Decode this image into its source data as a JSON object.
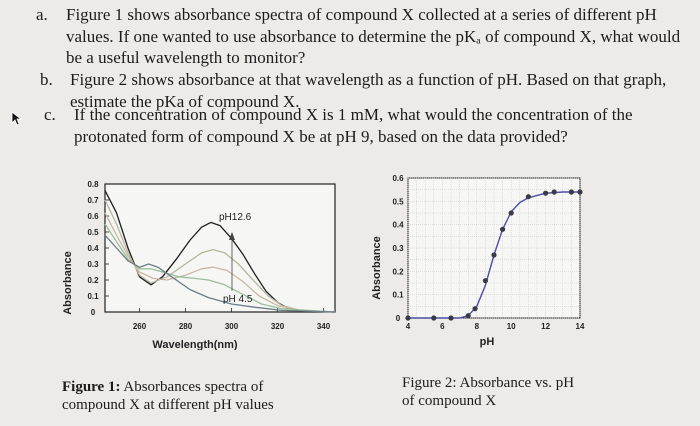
{
  "questions": [
    {
      "label": "a.",
      "lines": [
        "Figure 1 shows absorbance spectra of compound X collected at a series of different pH",
        "values. If one wanted to use absorbance to determine the pKₐ of compound X, what would",
        "be a useful wavelength to monitor?"
      ]
    },
    {
      "label": "b.",
      "lines": [
        "Figure 2 shows absorbance at that wavelength as a function of pH. Based on that graph,",
        "estimate the pKa of compound X."
      ]
    },
    {
      "label": "c.",
      "lines": [
        "If the concentration of compound X is 1 mM, what would the concentration of the",
        "protonated form of compound X be at pH 9, based on the data provided?"
      ]
    }
  ],
  "figure1": {
    "caption_bold": "Figure 1:",
    "caption_rest_line1": " Absorbances spectra of",
    "caption_line2": "compound X at different pH values"
  },
  "figure2": {
    "caption_line1": "Figure 2: Absorbance vs. pH",
    "caption_line2": "of compound X"
  },
  "chart_data": [
    {
      "type": "line",
      "xlabel": "Wavelength(nm)",
      "ylabel": "Absorbance",
      "xlim": [
        245,
        345
      ],
      "ylim": [
        0,
        0.8
      ],
      "x_ticks": [
        "260",
        "280",
        "300",
        "320",
        "340"
      ],
      "y_ticks": [
        "0.8",
        "0.7",
        "0.6",
        "0.5",
        "0.4",
        "0.3",
        "0.2",
        "0.1",
        "0"
      ],
      "annotations": [
        "pH12.6",
        "pH 4.5"
      ],
      "grid": false,
      "series": [
        {
          "color": "#1e1e1e",
          "points": [
            [
              245,
              0.76
            ],
            [
              250,
              0.62
            ],
            [
              255,
              0.4
            ],
            [
              260,
              0.22
            ],
            [
              265,
              0.17
            ],
            [
              270,
              0.22
            ],
            [
              276,
              0.33
            ],
            [
              282,
              0.45
            ],
            [
              287,
              0.53
            ],
            [
              291,
              0.56
            ],
            [
              295,
              0.54
            ],
            [
              300,
              0.46
            ],
            [
              305,
              0.36
            ],
            [
              310,
              0.24
            ],
            [
              315,
              0.13
            ],
            [
              320,
              0.06
            ],
            [
              325,
              0.02
            ],
            [
              330,
              0.01
            ],
            [
              345,
              0.0
            ]
          ]
        },
        {
          "color": "#b6b6a2",
          "points": [
            [
              245,
              0.7
            ],
            [
              250,
              0.55
            ],
            [
              255,
              0.37
            ],
            [
              260,
              0.23
            ],
            [
              265,
              0.18
            ],
            [
              272,
              0.22
            ],
            [
              280,
              0.3
            ],
            [
              287,
              0.37
            ],
            [
              292,
              0.39
            ],
            [
              297,
              0.37
            ],
            [
              303,
              0.3
            ],
            [
              310,
              0.19
            ],
            [
              316,
              0.1
            ],
            [
              322,
              0.04
            ],
            [
              330,
              0.01
            ],
            [
              345,
              0.0
            ]
          ]
        },
        {
          "color": "#c9b6a6",
          "points": [
            [
              245,
              0.62
            ],
            [
              250,
              0.48
            ],
            [
              255,
              0.35
            ],
            [
              260,
              0.25
            ],
            [
              266,
              0.21
            ],
            [
              272,
              0.2
            ],
            [
              280,
              0.23
            ],
            [
              287,
              0.27
            ],
            [
              292,
              0.28
            ],
            [
              298,
              0.26
            ],
            [
              305,
              0.19
            ],
            [
              312,
              0.1
            ],
            [
              320,
              0.04
            ],
            [
              330,
              0.01
            ],
            [
              345,
              0.0
            ]
          ]
        },
        {
          "color": "#9cbf9a",
          "points": [
            [
              245,
              0.55
            ],
            [
              250,
              0.44
            ],
            [
              255,
              0.33
            ],
            [
              260,
              0.27
            ],
            [
              265,
              0.27
            ],
            [
              270,
              0.25
            ],
            [
              277,
              0.22
            ],
            [
              284,
              0.21
            ],
            [
              290,
              0.2
            ],
            [
              297,
              0.17
            ],
            [
              305,
              0.11
            ],
            [
              313,
              0.05
            ],
            [
              322,
              0.02
            ],
            [
              345,
              0.0
            ]
          ]
        },
        {
          "color": "#6e7d86",
          "points": [
            [
              245,
              0.48
            ],
            [
              250,
              0.4
            ],
            [
              255,
              0.32
            ],
            [
              260,
              0.28
            ],
            [
              264,
              0.3
            ],
            [
              268,
              0.28
            ],
            [
              274,
              0.22
            ],
            [
              282,
              0.14
            ],
            [
              290,
              0.09
            ],
            [
              300,
              0.05
            ],
            [
              310,
              0.03
            ],
            [
              322,
              0.01
            ],
            [
              345,
              0.0
            ]
          ]
        }
      ]
    },
    {
      "type": "scatter",
      "xlabel": "pH",
      "ylabel": "Absorbance",
      "xlim": [
        4,
        14
      ],
      "ylim": [
        0,
        0.6
      ],
      "x_ticks": [
        "4",
        "6",
        "8",
        "10",
        "12",
        "14"
      ],
      "y_ticks": [
        "0.6",
        "0.5",
        "0.4",
        "0.3",
        "0.2",
        "0.1",
        "0"
      ],
      "grid": true,
      "points": [
        [
          4.0,
          0.0
        ],
        [
          5.5,
          0.0
        ],
        [
          6.5,
          0.0
        ],
        [
          7.5,
          0.01
        ],
        [
          7.9,
          0.04
        ],
        [
          8.5,
          0.16
        ],
        [
          9.0,
          0.27
        ],
        [
          9.5,
          0.38
        ],
        [
          10.0,
          0.45
        ],
        [
          11.0,
          0.52
        ],
        [
          12.0,
          0.535
        ],
        [
          12.5,
          0.54
        ],
        [
          13.5,
          0.54
        ],
        [
          14.0,
          0.54
        ]
      ],
      "curve": [
        [
          4.0,
          0.0
        ],
        [
          7.0,
          0.0
        ],
        [
          7.5,
          0.01
        ],
        [
          8.0,
          0.05
        ],
        [
          8.5,
          0.14
        ],
        [
          9.0,
          0.27
        ],
        [
          9.5,
          0.38
        ],
        [
          10.0,
          0.455
        ],
        [
          10.5,
          0.495
        ],
        [
          11.0,
          0.515
        ],
        [
          12.0,
          0.535
        ],
        [
          13.0,
          0.54
        ],
        [
          14.0,
          0.54
        ]
      ]
    }
  ]
}
